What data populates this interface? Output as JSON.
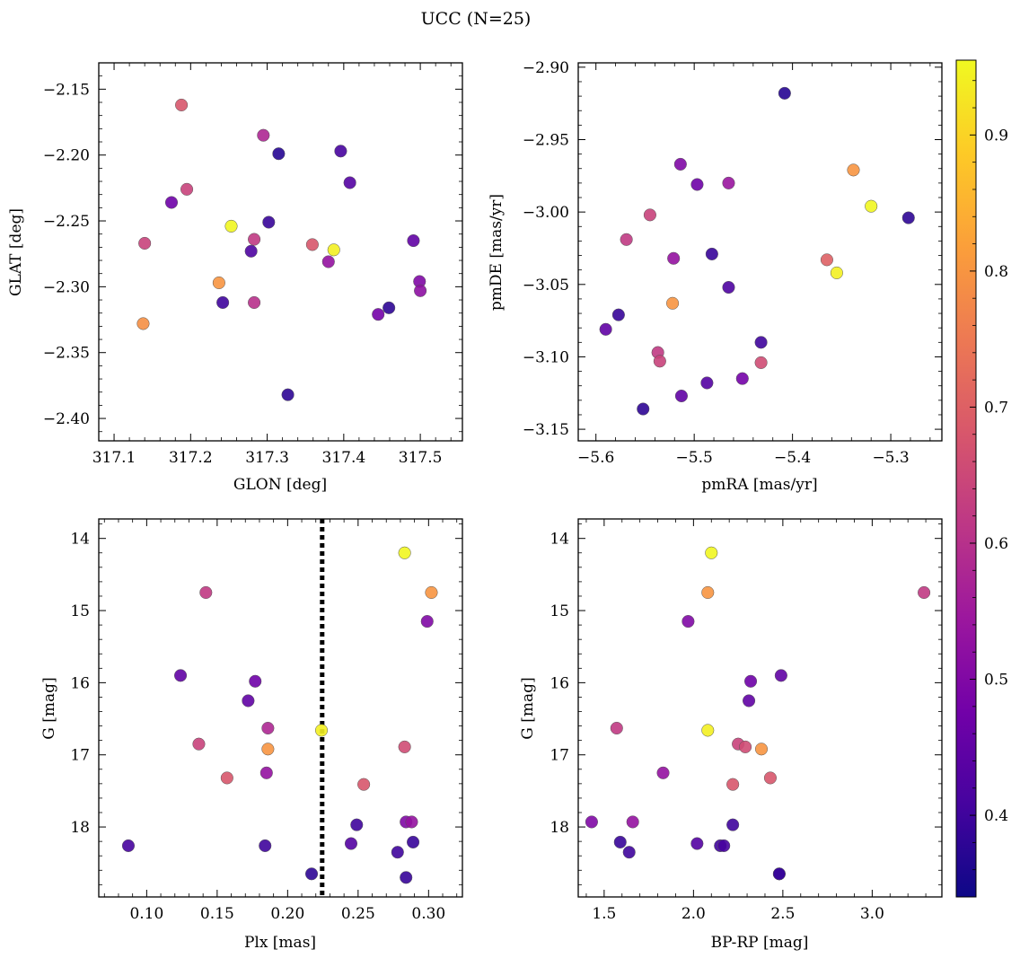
{
  "figure": {
    "title": "UCC (N=25)"
  },
  "colorbar": {
    "vmin": 0.34,
    "vmax": 0.955,
    "ticks": [
      0.4,
      0.5,
      0.6,
      0.7,
      0.8,
      0.9
    ],
    "tick_labels": [
      "0.4",
      "0.5",
      "0.6",
      "0.7",
      "0.8",
      "0.9"
    ],
    "colormap": "plasma",
    "colormap_stops": [
      "#0d0887",
      "#46039f",
      "#7201a8",
      "#9c179e",
      "#bd3786",
      "#d8576b",
      "#ed7953",
      "#fb9f3a",
      "#fdca26",
      "#f0f921"
    ]
  },
  "chart_data": [
    {
      "type": "scatter",
      "xlabel": "GLON [deg]",
      "ylabel": "GLAT [deg]",
      "xlim": [
        317.08,
        317.555
      ],
      "ylim": [
        -2.417,
        -2.13
      ],
      "xticks": [
        317.1,
        317.2,
        317.3,
        317.4,
        317.5
      ],
      "xtick_labels": [
        "317.1",
        "317.2",
        "317.3",
        "317.4",
        "317.5"
      ],
      "yticks": [
        -2.15,
        -2.2,
        -2.25,
        -2.3,
        -2.35,
        -2.4
      ],
      "ytick_labels": [
        "−2.15",
        "−2.20",
        "−2.25",
        "−2.30",
        "−2.35",
        "−2.40"
      ],
      "x": [
        317.188,
        317.295,
        317.315,
        317.396,
        317.408,
        317.175,
        317.195,
        317.253,
        317.302,
        317.14,
        317.283,
        317.359,
        317.387,
        317.279,
        317.38,
        317.491,
        317.237,
        317.499,
        317.5,
        317.242,
        317.283,
        317.459,
        317.445,
        317.138,
        317.327
      ],
      "y": [
        -2.162,
        -2.185,
        -2.199,
        -2.197,
        -2.221,
        -2.236,
        -2.226,
        -2.254,
        -2.251,
        -2.267,
        -2.264,
        -2.268,
        -2.272,
        -2.273,
        -2.281,
        -2.265,
        -2.297,
        -2.296,
        -2.303,
        -2.312,
        -2.312,
        -2.316,
        -2.321,
        -2.328,
        -2.382
      ],
      "c": [
        0.68,
        0.58,
        0.37,
        0.41,
        0.43,
        0.47,
        0.64,
        0.95,
        0.39,
        0.64,
        0.62,
        0.68,
        0.94,
        0.42,
        0.53,
        0.45,
        0.8,
        0.5,
        0.52,
        0.4,
        0.6,
        0.38,
        0.48,
        0.79,
        0.38
      ]
    },
    {
      "type": "scatter",
      "xlabel": "pmRA [mas/yr]",
      "ylabel": "pmDE [mas/yr]",
      "xlim": [
        -5.618,
        -5.248
      ],
      "ylim": [
        -3.158,
        -2.897
      ],
      "xticks": [
        -5.6,
        -5.5,
        -5.4,
        -5.3
      ],
      "xtick_labels": [
        "−5.6",
        "−5.5",
        "−5.4",
        "−5.3"
      ],
      "yticks": [
        -2.9,
        -2.95,
        -3.0,
        -3.05,
        -3.1,
        -3.15
      ],
      "ytick_labels": [
        "−2.90",
        "−2.95",
        "−3.00",
        "−3.05",
        "−3.10",
        "−3.15"
      ],
      "x": [
        -5.408,
        -5.514,
        -5.497,
        -5.465,
        -5.338,
        -5.32,
        -5.282,
        -5.545,
        -5.569,
        -5.482,
        -5.521,
        -5.365,
        -5.355,
        -5.465,
        -5.522,
        -5.577,
        -5.59,
        -5.432,
        -5.537,
        -5.535,
        -5.432,
        -5.451,
        -5.487,
        -5.513,
        -5.552
      ],
      "y": [
        -2.918,
        -2.967,
        -2.981,
        -2.98,
        -2.971,
        -2.996,
        -3.004,
        -3.002,
        -3.019,
        -3.029,
        -3.032,
        -3.033,
        -3.042,
        -3.052,
        -3.063,
        -3.071,
        -3.081,
        -3.09,
        -3.097,
        -3.103,
        -3.104,
        -3.115,
        -3.118,
        -3.127,
        -3.136
      ],
      "c": [
        0.37,
        0.5,
        0.47,
        0.54,
        0.8,
        0.95,
        0.38,
        0.64,
        0.62,
        0.39,
        0.53,
        0.7,
        0.94,
        0.42,
        0.8,
        0.39,
        0.45,
        0.4,
        0.62,
        0.64,
        0.66,
        0.48,
        0.43,
        0.45,
        0.38
      ]
    },
    {
      "type": "scatter",
      "xlabel": "Plx [mas]",
      "ylabel": "G [mag]",
      "xlim": [
        0.066,
        0.324
      ],
      "ylim": [
        18.97,
        13.73
      ],
      "xticks": [
        0.1,
        0.15,
        0.2,
        0.25,
        0.3
      ],
      "xtick_labels": [
        "0.10",
        "0.15",
        "0.20",
        "0.25",
        "0.30"
      ],
      "yticks": [
        14,
        15,
        16,
        17,
        18
      ],
      "ytick_labels": [
        "14",
        "15",
        "16",
        "17",
        "18"
      ],
      "vline_x": 0.2245,
      "x": [
        0.283,
        0.302,
        0.299,
        0.142,
        0.124,
        0.177,
        0.172,
        0.186,
        0.224,
        0.137,
        0.186,
        0.283,
        0.185,
        0.157,
        0.254,
        0.284,
        0.288,
        0.249,
        0.289,
        0.245,
        0.184,
        0.087,
        0.278,
        0.217,
        0.284
      ],
      "y": [
        14.2,
        14.75,
        15.15,
        14.75,
        15.9,
        15.98,
        16.25,
        16.63,
        16.66,
        16.85,
        16.92,
        16.89,
        17.25,
        17.32,
        17.41,
        17.93,
        17.93,
        17.97,
        18.21,
        18.23,
        18.26,
        18.26,
        18.35,
        18.65,
        18.7
      ],
      "c": [
        0.95,
        0.8,
        0.5,
        0.62,
        0.45,
        0.47,
        0.45,
        0.58,
        0.94,
        0.64,
        0.8,
        0.66,
        0.53,
        0.68,
        0.68,
        0.5,
        0.53,
        0.4,
        0.39,
        0.43,
        0.4,
        0.41,
        0.4,
        0.38,
        0.39
      ]
    },
    {
      "type": "scatter",
      "xlabel": "BP-RP [mag]",
      "ylabel": "G [mag]",
      "xlim": [
        1.355,
        3.39
      ],
      "ylim": [
        18.97,
        13.73
      ],
      "xticks": [
        1.5,
        2.0,
        2.5,
        3.0
      ],
      "xtick_labels": [
        "1.5",
        "2.0",
        "2.5",
        "3.0"
      ],
      "yticks": [
        14,
        15,
        16,
        17,
        18
      ],
      "ytick_labels": [
        "14",
        "15",
        "16",
        "17",
        "18"
      ],
      "x": [
        2.1,
        2.08,
        1.97,
        3.29,
        2.49,
        2.32,
        2.31,
        1.57,
        2.08,
        2.25,
        2.29,
        2.38,
        1.83,
        2.43,
        2.22,
        1.43,
        1.66,
        2.22,
        1.59,
        2.02,
        2.15,
        2.17,
        1.64,
        2.48,
        2.48
      ],
      "y": [
        14.2,
        14.75,
        15.15,
        14.75,
        15.9,
        15.98,
        16.25,
        16.63,
        16.66,
        16.85,
        16.89,
        16.92,
        17.25,
        17.32,
        17.41,
        17.93,
        17.93,
        17.97,
        18.21,
        18.23,
        18.26,
        18.26,
        18.35,
        18.65,
        18.65
      ],
      "c": [
        0.95,
        0.8,
        0.5,
        0.62,
        0.45,
        0.47,
        0.45,
        0.62,
        0.94,
        0.64,
        0.66,
        0.8,
        0.53,
        0.68,
        0.68,
        0.5,
        0.53,
        0.4,
        0.39,
        0.43,
        0.4,
        0.41,
        0.4,
        0.38,
        0.39
      ]
    }
  ]
}
